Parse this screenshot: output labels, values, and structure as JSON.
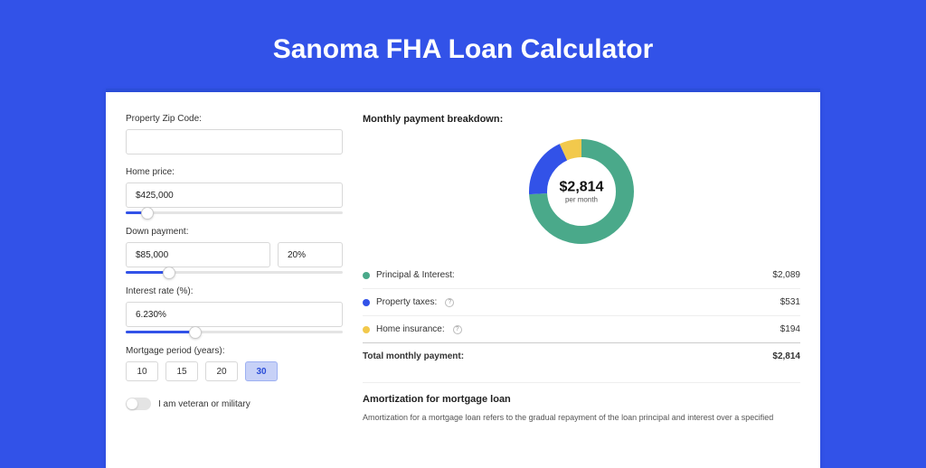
{
  "page": {
    "title": "Sanoma FHA Loan Calculator",
    "background_color": "#3252e8",
    "card_background": "#ffffff"
  },
  "form": {
    "zip": {
      "label": "Property Zip Code:",
      "value": ""
    },
    "home_price": {
      "label": "Home price:",
      "value": "$425,000",
      "slider_pct": 10
    },
    "down_payment": {
      "label": "Down payment:",
      "amount": "$85,000",
      "percent": "20%",
      "slider_pct": 20
    },
    "interest_rate": {
      "label": "Interest rate (%):",
      "value": "6.230%",
      "slider_pct": 32
    },
    "mortgage_period": {
      "label": "Mortgage period (years):",
      "options": [
        "10",
        "15",
        "20",
        "30"
      ],
      "selected": "30"
    },
    "veteran": {
      "label": "I am veteran or military",
      "checked": false
    }
  },
  "breakdown": {
    "title": "Monthly payment breakdown:",
    "center_amount": "$2,814",
    "center_sub": "per month",
    "items": [
      {
        "label": "Principal & Interest:",
        "value": "$2,089",
        "color": "#4aa98a",
        "has_info": false,
        "pct": 74
      },
      {
        "label": "Property taxes:",
        "value": "$531",
        "color": "#3252e8",
        "has_info": true,
        "pct": 19
      },
      {
        "label": "Home insurance:",
        "value": "$194",
        "color": "#f2c94c",
        "has_info": true,
        "pct": 7
      }
    ],
    "total": {
      "label": "Total monthly payment:",
      "value": "$2,814"
    }
  },
  "amortization": {
    "title": "Amortization for mortgage loan",
    "body": "Amortization for a mortgage loan refers to the gradual repayment of the loan principal and interest over a specified"
  },
  "donut": {
    "radius": 48,
    "stroke_width": 20,
    "circumference": 301.59
  }
}
